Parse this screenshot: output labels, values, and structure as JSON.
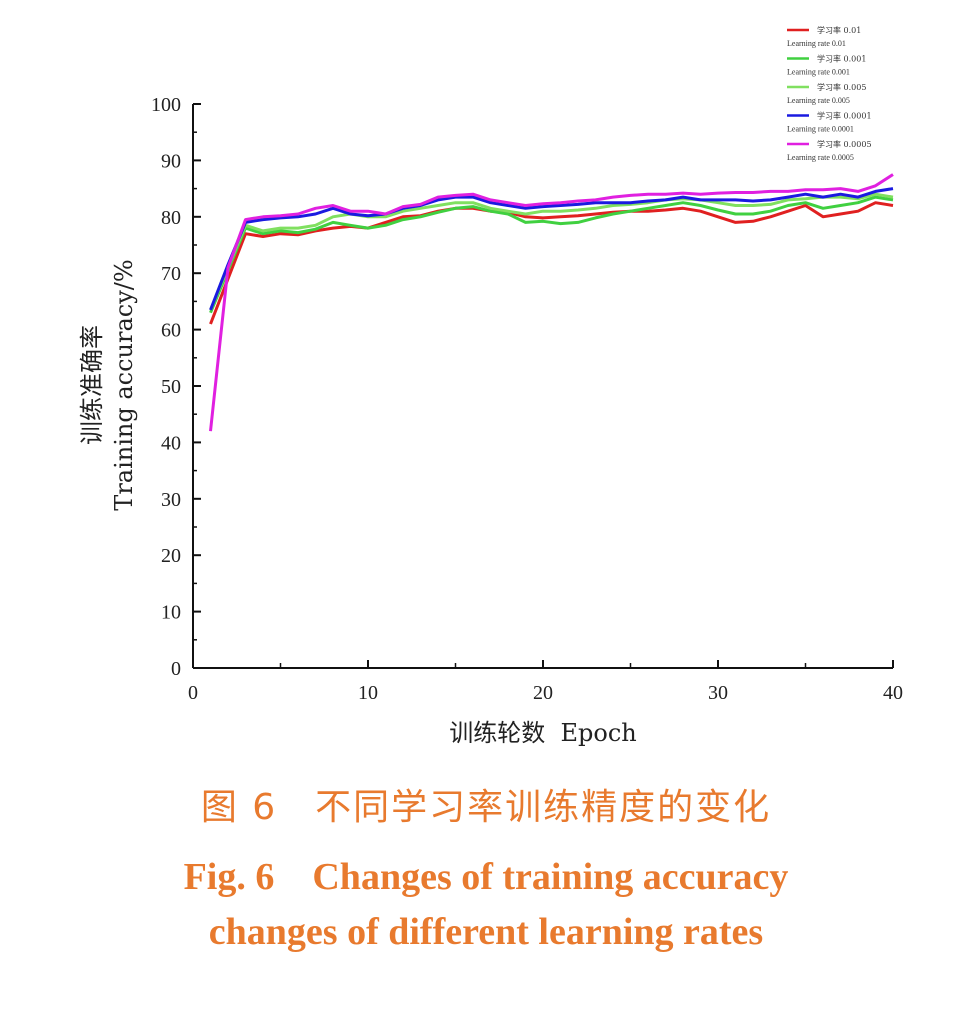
{
  "chart_data": {
    "type": "line",
    "ylabel_cn": "训练准确率",
    "ylabel": "Training accuracy/%",
    "xlabel": "训练轮数  Epoch",
    "xlim": [
      0,
      40
    ],
    "ylim": [
      0,
      100
    ],
    "xticks": [
      0,
      10,
      20,
      30,
      40
    ],
    "yticks": [
      0,
      10,
      20,
      30,
      40,
      50,
      60,
      70,
      80,
      90,
      100
    ],
    "legend_position": "top-right",
    "x": [
      1,
      2,
      3,
      4,
      5,
      6,
      7,
      8,
      9,
      10,
      11,
      12,
      13,
      14,
      15,
      16,
      17,
      18,
      19,
      20,
      21,
      22,
      23,
      24,
      25,
      26,
      27,
      28,
      29,
      30,
      31,
      32,
      33,
      34,
      35,
      36,
      37,
      38,
      39,
      40
    ],
    "series": [
      {
        "name_cn": "学习率 0.01",
        "name": "Learning rate 0.01",
        "color": "#e02020",
        "values": [
          61,
          69,
          77,
          76.5,
          77,
          76.8,
          77.5,
          78,
          78.3,
          78,
          79,
          80,
          80.2,
          81,
          81.5,
          81.5,
          81,
          80.8,
          80,
          79.8,
          80,
          80.2,
          80.5,
          80.8,
          81,
          81,
          81.2,
          81.5,
          81,
          80,
          79,
          79.2,
          80,
          81,
          82,
          80,
          80.5,
          81,
          82.5,
          82
        ]
      },
      {
        "name_cn": "学习率 0.001",
        "name": "Learning rate 0.001",
        "color": "#40d040",
        "values": [
          63,
          70.5,
          78,
          77,
          77.5,
          77.2,
          77.8,
          79,
          78.5,
          78,
          78.5,
          79.5,
          80,
          80.8,
          81.5,
          81.8,
          81,
          80.5,
          79,
          79.2,
          78.8,
          79,
          79.8,
          80.5,
          81,
          81.5,
          82,
          82.5,
          82,
          81.2,
          80.5,
          80.5,
          81,
          82,
          82.5,
          81.5,
          82,
          82.5,
          83.5,
          83
        ]
      },
      {
        "name_cn": "学习率 0.005",
        "name": "Learning rate 0.005",
        "color": "#80e060",
        "values": [
          63.5,
          71,
          78.5,
          77.5,
          78,
          78,
          78.5,
          80,
          80.5,
          80,
          80,
          81,
          81.5,
          82,
          82.5,
          82.5,
          81.5,
          81,
          80.5,
          81,
          81,
          81.2,
          81.5,
          82,
          82.2,
          82.5,
          83,
          83.2,
          83,
          82.5,
          82,
          82,
          82.2,
          83,
          83.2,
          83.5,
          83.5,
          83.2,
          84,
          83.5
        ]
      },
      {
        "name_cn": "学习率 0.0001",
        "name": "Learning rate 0.0001",
        "color": "#1a1ae0",
        "values": [
          63.5,
          71.5,
          79,
          79.5,
          79.8,
          80,
          80.5,
          81.5,
          80.5,
          80.2,
          80.5,
          81.5,
          82,
          83,
          83.5,
          83.5,
          82.5,
          82,
          81.5,
          81.8,
          82,
          82.2,
          82.5,
          82.5,
          82.5,
          82.8,
          83,
          83.5,
          83,
          83,
          83,
          82.8,
          83,
          83.5,
          84,
          83.5,
          84,
          83.5,
          84.5,
          85
        ]
      },
      {
        "name_cn": "学习率 0.0005",
        "name": "Learning rate 0.0005",
        "color": "#e020e0",
        "values": [
          42,
          71,
          79.5,
          80,
          80.2,
          80.5,
          81.5,
          82,
          81,
          81,
          80.5,
          81.8,
          82.2,
          83.5,
          83.8,
          84,
          83,
          82.5,
          82,
          82.3,
          82.5,
          82.8,
          83,
          83.5,
          83.8,
          84,
          84,
          84.2,
          84,
          84.2,
          84.3,
          84.3,
          84.5,
          84.5,
          84.8,
          84.8,
          85,
          84.5,
          85.5,
          87.5
        ]
      }
    ]
  },
  "caption": {
    "cn": "图 6　不同学习率训练精度的变化",
    "en_line1": "Fig. 6　Changes of training accuracy",
    "en_line2": "changes of different learning rates"
  }
}
